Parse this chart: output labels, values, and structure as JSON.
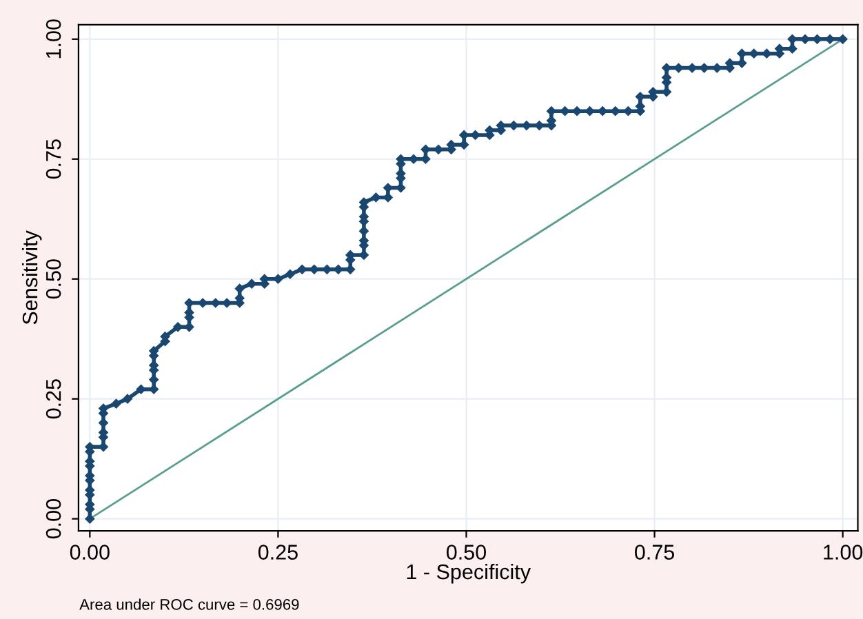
{
  "chart_data": {
    "type": "line",
    "xlabel": "1 - Specificity",
    "ylabel": "Sensitivity",
    "xlim": [
      -0.015,
      1.02
    ],
    "ylim": [
      -0.025,
      1.03
    ],
    "xticks": [
      {
        "value": 0,
        "label": "0.00"
      },
      {
        "value": 0.25,
        "label": "0.25"
      },
      {
        "value": 0.5,
        "label": "0.50"
      },
      {
        "value": 0.75,
        "label": "0.75"
      },
      {
        "value": 1,
        "label": "1.00"
      }
    ],
    "yticks": [
      {
        "value": 0,
        "label": "0.00"
      },
      {
        "value": 0.25,
        "label": "0.25"
      },
      {
        "value": 0.5,
        "label": "0.50"
      },
      {
        "value": 0.75,
        "label": "0.75"
      },
      {
        "value": 1,
        "label": "1.00"
      }
    ],
    "grid": true,
    "annotations": [
      "Area under ROC curve = 0.6969"
    ],
    "series": [
      {
        "type": "line",
        "color": "#1a476f",
        "marker": "diamond",
        "x": [
          0,
          0,
          0,
          0,
          0,
          0,
          0,
          0,
          0,
          0,
          0,
          0.018,
          0.018,
          0.018,
          0.018,
          0.018,
          0.018,
          0.035,
          0.05,
          0.068,
          0.085,
          0.085,
          0.085,
          0.085,
          0.085,
          0.085,
          0.1,
          0.1,
          0.117,
          0.132,
          0.132,
          0.132,
          0.132,
          0.15,
          0.167,
          0.182,
          0.199,
          0.199,
          0.199,
          0.215,
          0.232,
          0.232,
          0.25,
          0.266,
          0.282,
          0.298,
          0.315,
          0.33,
          0.346,
          0.346,
          0.346,
          0.364,
          0.364,
          0.364,
          0.364,
          0.364,
          0.364,
          0.364,
          0.364,
          0.38,
          0.396,
          0.396,
          0.413,
          0.413,
          0.413,
          0.413,
          0.413,
          0.43,
          0.446,
          0.446,
          0.463,
          0.48,
          0.48,
          0.497,
          0.497,
          0.512,
          0.531,
          0.531,
          0.546,
          0.546,
          0.563,
          0.58,
          0.597,
          0.613,
          0.613,
          0.613,
          0.631,
          0.647,
          0.664,
          0.681,
          0.698,
          0.715,
          0.731,
          0.731,
          0.731,
          0.748,
          0.748,
          0.766,
          0.766,
          0.766,
          0.766,
          0.782,
          0.8,
          0.816,
          0.833,
          0.85,
          0.85,
          0.866,
          0.866,
          0.882,
          0.899,
          0.916,
          0.916,
          0.933,
          0.933,
          0.95,
          0.966,
          0.983,
          1.0
        ],
        "values": [
          0,
          0.02,
          0.03,
          0.05,
          0.06,
          0.08,
          0.09,
          0.11,
          0.12,
          0.14,
          0.15,
          0.15,
          0.17,
          0.18,
          0.2,
          0.22,
          0.23,
          0.24,
          0.25,
          0.27,
          0.27,
          0.29,
          0.31,
          0.32,
          0.34,
          0.35,
          0.37,
          0.38,
          0.4,
          0.4,
          0.42,
          0.43,
          0.45,
          0.45,
          0.45,
          0.45,
          0.45,
          0.46,
          0.48,
          0.49,
          0.49,
          0.5,
          0.5,
          0.51,
          0.52,
          0.52,
          0.52,
          0.52,
          0.52,
          0.54,
          0.55,
          0.55,
          0.57,
          0.58,
          0.6,
          0.62,
          0.63,
          0.65,
          0.66,
          0.67,
          0.67,
          0.69,
          0.69,
          0.71,
          0.72,
          0.74,
          0.75,
          0.75,
          0.75,
          0.77,
          0.77,
          0.77,
          0.78,
          0.78,
          0.8,
          0.8,
          0.8,
          0.81,
          0.81,
          0.82,
          0.82,
          0.82,
          0.82,
          0.82,
          0.83,
          0.85,
          0.85,
          0.85,
          0.85,
          0.85,
          0.85,
          0.85,
          0.85,
          0.86,
          0.88,
          0.88,
          0.89,
          0.89,
          0.91,
          0.92,
          0.94,
          0.94,
          0.94,
          0.94,
          0.94,
          0.94,
          0.95,
          0.95,
          0.97,
          0.97,
          0.97,
          0.97,
          0.98,
          0.98,
          1.0,
          1.0,
          1.0,
          1.0,
          1.0
        ]
      },
      {
        "type": "line",
        "color": "#5a9e8f",
        "x": [
          0,
          1
        ],
        "values": [
          0,
          1
        ]
      }
    ]
  }
}
